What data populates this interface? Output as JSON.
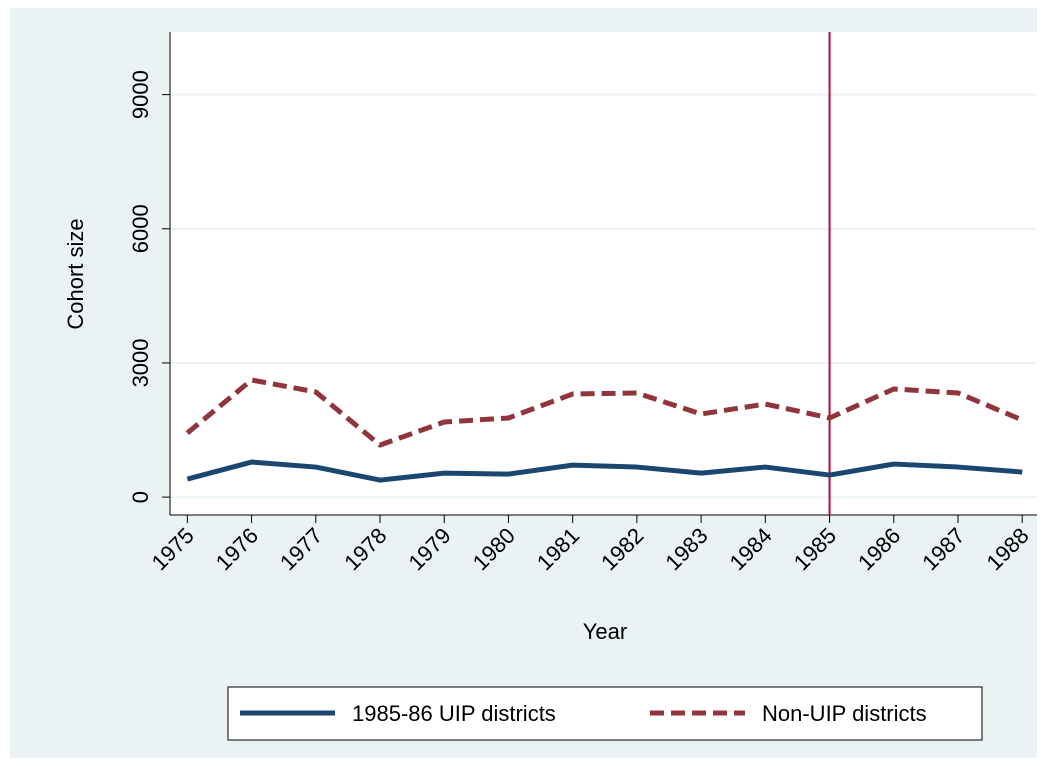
{
  "chart_data": {
    "type": "line",
    "x_label": "Year",
    "y_label": "Cohort size",
    "x": [
      1975,
      1976,
      1977,
      1978,
      1979,
      1980,
      1981,
      1982,
      1983,
      1984,
      1985,
      1986,
      1987,
      1988
    ],
    "series": [
      {
        "name": "1985-86 UIP districts",
        "color": "#1a476f",
        "dash": "solid",
        "values": [
          403,
          784,
          672,
          381,
          537,
          515,
          716,
          672,
          537,
          672,
          493,
          739,
          672,
          560
        ]
      },
      {
        "name": "Non-UIP districts",
        "color": "#90353b",
        "dash": "dashed",
        "values": [
          1433,
          2619,
          2351,
          1164,
          1679,
          1769,
          2306,
          2328,
          1858,
          2082,
          1769,
          2418,
          2328,
          1724
        ]
      }
    ],
    "vline": 1985,
    "vline_color": "#c10534",
    "xlim": [
      1974.73,
      1988.23
    ],
    "ylim": [
      -400,
      10400
    ],
    "xticks": [
      1975,
      1976,
      1977,
      1978,
      1979,
      1980,
      1981,
      1982,
      1983,
      1984,
      1985,
      1986,
      1987,
      1988
    ],
    "yticks": [
      0,
      3000,
      6000,
      9000
    ],
    "grid": true
  }
}
